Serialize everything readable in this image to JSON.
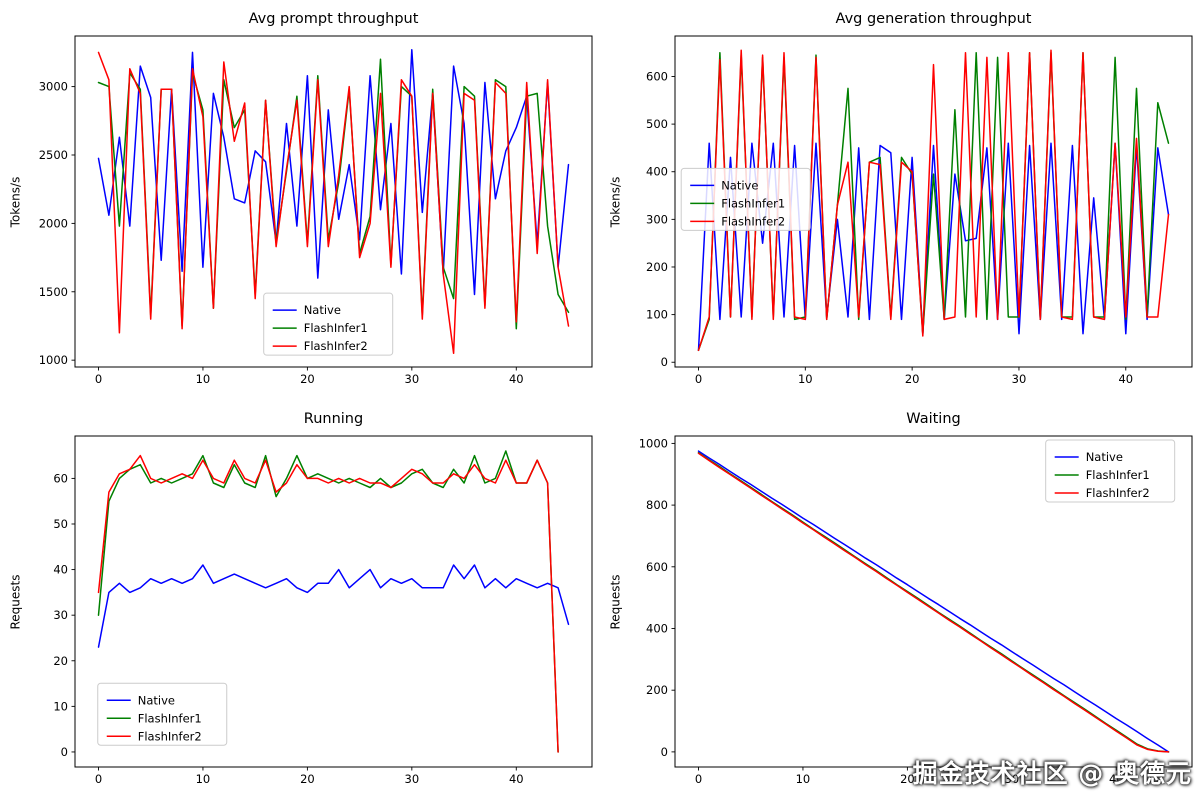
{
  "watermark": "掘金技术社区 @ 奥德元",
  "colors": {
    "native": "#0000ff",
    "flashinfer1": "#008000",
    "flashinfer2": "#ff0000",
    "background": "#ffffff",
    "legend_border": "#cccccc"
  },
  "chart_data": [
    {
      "type": "line",
      "title": "Avg prompt throughput",
      "xlabel": "",
      "ylabel": "Tokens/s",
      "xlim": [
        -2.25,
        47.25
      ],
      "ylim": [
        950,
        3370
      ],
      "xticks": [
        0,
        10,
        20,
        30,
        40
      ],
      "yticks": [
        1000,
        1500,
        2000,
        2500,
        3000
      ],
      "grid": false,
      "legend_position": "lower-center",
      "legend": {
        "x": 0.365,
        "y": 0.777
      },
      "series": [
        {
          "name": "Native",
          "color": "#0000ff",
          "values": [
            2475,
            2060,
            2630,
            1980,
            3150,
            2920,
            1730,
            2980,
            1650,
            3250,
            1680,
            2950,
            2630,
            2180,
            2150,
            2530,
            2450,
            1860,
            2730,
            1980,
            3080,
            1600,
            2830,
            2030,
            2430,
            1880,
            3080,
            2100,
            2730,
            1630,
            3270,
            2080,
            2950,
            1630,
            3150,
            2730,
            1480,
            3030,
            2180,
            2530,
            2700,
            2930,
            1850,
            3030,
            1680,
            2430
          ]
        },
        {
          "name": "FlashInfer1",
          "color": "#008000",
          "values": [
            3030,
            3000,
            1980,
            3100,
            2980,
            1330,
            2980,
            2980,
            1250,
            3100,
            2830,
            1380,
            3050,
            2700,
            2830,
            1480,
            2900,
            1860,
            2380,
            2930,
            1860,
            3080,
            1880,
            2300,
            2980,
            1780,
            2050,
            3200,
            1700,
            3000,
            2930,
            1330,
            2980,
            1680,
            1450,
            3000,
            2930,
            1400,
            3050,
            3000,
            1230,
            2930,
            2950,
            1980,
            1480,
            1350
          ]
        },
        {
          "name": "FlashInfer2",
          "color": "#ff0000",
          "values": [
            3250,
            3050,
            1200,
            3130,
            2950,
            1300,
            2980,
            2980,
            1230,
            3130,
            2780,
            1380,
            3180,
            2600,
            2880,
            1450,
            2900,
            1830,
            2400,
            2900,
            1830,
            3050,
            1830,
            2350,
            3000,
            1750,
            2000,
            2950,
            1680,
            3050,
            2930,
            1300,
            2950,
            1630,
            1050,
            2950,
            2900,
            1380,
            3030,
            2950,
            1280,
            3030,
            1780,
            3050,
            1680,
            1250
          ]
        }
      ]
    },
    {
      "type": "line",
      "title": "Avg generation throughput",
      "xlabel": "",
      "ylabel": "Tokens/s",
      "xlim": [
        -2.2,
        46.2
      ],
      "ylim": [
        -10,
        685
      ],
      "xticks": [
        0,
        10,
        20,
        30,
        40
      ],
      "yticks": [
        0,
        100,
        200,
        300,
        400,
        500,
        600
      ],
      "grid": false,
      "legend_position": "center-left",
      "legend": {
        "x": 0.012,
        "y": 0.4
      },
      "series": [
        {
          "name": "Native",
          "color": "#0000ff",
          "values": [
            25,
            460,
            90,
            430,
            95,
            460,
            250,
            460,
            95,
            455,
            90,
            460,
            95,
            300,
            95,
            450,
            90,
            455,
            440,
            90,
            430,
            60,
            455,
            90,
            395,
            255,
            260,
            450,
            90,
            460,
            60,
            455,
            90,
            460,
            90,
            455,
            60,
            345,
            90,
            460,
            60,
            455,
            90,
            450,
            310
          ]
        },
        {
          "name": "FlashInfer1",
          "color": "#008000",
          "values": [
            25,
            90,
            650,
            95,
            645,
            95,
            640,
            95,
            640,
            90,
            95,
            645,
            90,
            330,
            575,
            90,
            420,
            430,
            95,
            430,
            395,
            60,
            395,
            90,
            530,
            95,
            650,
            90,
            640,
            95,
            95,
            650,
            90,
            650,
            95,
            95,
            650,
            95,
            95,
            640,
            90,
            575,
            95,
            545,
            460
          ]
        },
        {
          "name": "FlashInfer2",
          "color": "#ff0000",
          "values": [
            25,
            95,
            635,
            95,
            655,
            90,
            645,
            90,
            650,
            95,
            90,
            640,
            90,
            330,
            420,
            95,
            420,
            415,
            90,
            420,
            400,
            55,
            625,
            90,
            95,
            650,
            95,
            640,
            90,
            650,
            95,
            650,
            90,
            655,
            95,
            90,
            650,
            95,
            90,
            460,
            95,
            470,
            95,
            95,
            310
          ]
        }
      ]
    },
    {
      "type": "line",
      "title": "Running",
      "xlabel": "",
      "ylabel": "Requests",
      "xlim": [
        -2.25,
        47.25
      ],
      "ylim": [
        -3.3,
        69.3
      ],
      "xticks": [
        0,
        10,
        20,
        30,
        40
      ],
      "yticks": [
        0,
        10,
        20,
        30,
        40,
        50,
        60
      ],
      "grid": false,
      "legend_position": "lower-left",
      "legend": {
        "x": 0.044,
        "y": 0.747
      },
      "series": [
        {
          "name": "Native",
          "color": "#0000ff",
          "values": [
            23,
            35,
            37,
            35,
            36,
            38,
            37,
            38,
            37,
            38,
            41,
            37,
            38,
            39,
            38,
            37,
            36,
            37,
            38,
            36,
            35,
            37,
            37,
            40,
            36,
            38,
            40,
            36,
            38,
            37,
            38,
            36,
            36,
            36,
            41,
            38,
            41,
            36,
            38,
            36,
            38,
            37,
            36,
            37,
            36,
            28
          ]
        },
        {
          "name": "FlashInfer1",
          "color": "#008000",
          "values": [
            30,
            55,
            60,
            62,
            63,
            59,
            60,
            59,
            60,
            61,
            65,
            59,
            58,
            63,
            59,
            58,
            65,
            56,
            60,
            65,
            60,
            61,
            60,
            59,
            60,
            59,
            58,
            60,
            58,
            59,
            61,
            62,
            59,
            58,
            62,
            59,
            65,
            59,
            60,
            66,
            59,
            59,
            64,
            59,
            0
          ]
        },
        {
          "name": "FlashInfer2",
          "color": "#ff0000",
          "values": [
            35,
            57,
            61,
            62,
            65,
            60,
            59,
            60,
            61,
            60,
            64,
            60,
            59,
            64,
            60,
            59,
            64,
            57,
            59,
            63,
            60,
            60,
            59,
            60,
            59,
            60,
            59,
            59,
            58,
            60,
            62,
            61,
            59,
            59,
            61,
            60,
            63,
            60,
            59,
            64,
            59,
            59,
            64,
            59,
            0
          ]
        }
      ]
    },
    {
      "type": "line",
      "title": "Waiting",
      "xlabel": "",
      "ylabel": "Requests",
      "xlim": [
        -2.25,
        47.25
      ],
      "ylim": [
        -49,
        1024
      ],
      "xticks": [
        0,
        10,
        20,
        30,
        40
      ],
      "yticks": [
        0,
        200,
        400,
        600,
        800,
        1000
      ],
      "grid": false,
      "legend_position": "upper-right",
      "legend": {
        "x": 0.717,
        "y": 0.012
      },
      "series": [
        {
          "name": "Native",
          "color": "#0000ff",
          "values": [
            975,
            953,
            932,
            910,
            888,
            867,
            845,
            823,
            802,
            780,
            758,
            737,
            715,
            693,
            672,
            650,
            628,
            607,
            585,
            563,
            542,
            520,
            498,
            477,
            455,
            433,
            412,
            390,
            368,
            347,
            325,
            303,
            282,
            260,
            238,
            217,
            195,
            173,
            152,
            130,
            108,
            87,
            65,
            43,
            22,
            0
          ]
        },
        {
          "name": "FlashInfer1",
          "color": "#008000",
          "values": [
            970,
            947,
            925,
            902,
            880,
            858,
            835,
            812,
            790,
            768,
            745,
            722,
            700,
            678,
            655,
            632,
            610,
            588,
            565,
            542,
            520,
            498,
            475,
            452,
            430,
            408,
            385,
            362,
            340,
            318,
            295,
            272,
            250,
            228,
            205,
            182,
            160,
            138,
            115,
            92,
            70,
            48,
            25,
            10,
            3,
            0
          ]
        },
        {
          "name": "FlashInfer2",
          "color": "#ff0000",
          "values": [
            968,
            945,
            922,
            900,
            877,
            855,
            832,
            810,
            787,
            765,
            742,
            720,
            697,
            675,
            652,
            630,
            607,
            585,
            562,
            540,
            517,
            495,
            472,
            450,
            427,
            405,
            382,
            360,
            337,
            315,
            292,
            270,
            247,
            225,
            202,
            180,
            157,
            135,
            112,
            90,
            67,
            45,
            22,
            8,
            2,
            0
          ]
        }
      ]
    }
  ]
}
